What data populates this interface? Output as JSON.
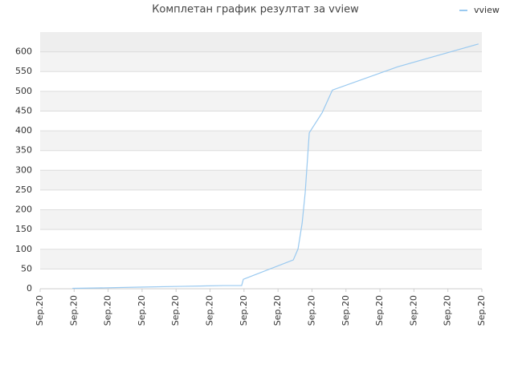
{
  "chart_data": {
    "type": "line",
    "title": "Комплетан график резултат за vview",
    "x": [
      0.95,
      1.7,
      2.9,
      4.1,
      5.4,
      5.93,
      5.98,
      7.45,
      7.59,
      7.71,
      7.8,
      7.92,
      8.3,
      8.6,
      10.52,
      12.9
    ],
    "series": [
      {
        "name": "vview",
        "color": "#99c9f0",
        "values": [
          1,
          2,
          4,
          6,
          8,
          8,
          24,
          73,
          101,
          166,
          243,
          395,
          446,
          503,
          562,
          620
        ]
      }
    ],
    "xlim": [
      0,
      13
    ],
    "xticks": [
      {
        "value": 0,
        "label": "Sep.20"
      },
      {
        "value": 1,
        "label": "Sep.20"
      },
      {
        "value": 2,
        "label": "Sep.20"
      },
      {
        "value": 3,
        "label": "Sep.20"
      },
      {
        "value": 4,
        "label": "Sep.20"
      },
      {
        "value": 5,
        "label": "Sep.20"
      },
      {
        "value": 6,
        "label": "Sep.20"
      },
      {
        "value": 7,
        "label": "Sep.20"
      },
      {
        "value": 8,
        "label": "Sep.20"
      },
      {
        "value": 9,
        "label": "Sep.20"
      },
      {
        "value": 10,
        "label": "Sep.20"
      },
      {
        "value": 11,
        "label": "Sep.20"
      },
      {
        "value": 12,
        "label": "Sep.20"
      },
      {
        "value": 13,
        "label": "Sep.20"
      }
    ],
    "ylim": [
      0,
      650
    ],
    "yticks": [
      0,
      50,
      100,
      150,
      200,
      250,
      300,
      350,
      400,
      450,
      500,
      550,
      600
    ],
    "grid": true,
    "legend": "top-right"
  }
}
